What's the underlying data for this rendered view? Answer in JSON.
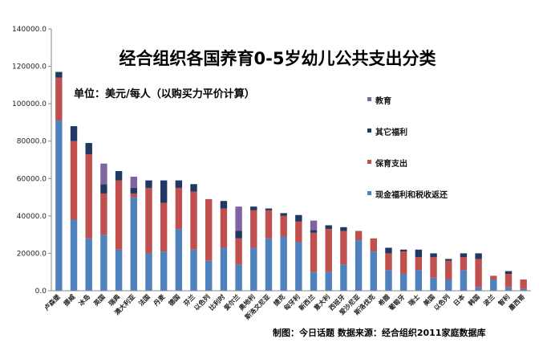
{
  "chart_data": {
    "type": "bar",
    "stacked": true,
    "title": "经合组织各国养育0-5岁幼儿公共支出分类",
    "subtitle": "单位：美元/每人（以购买力平价计算）",
    "credit": "制图：今日话题    数据来源：经合组织2011家庭数据库",
    "ylim": [
      0,
      140000
    ],
    "yticks": [
      "0.0",
      "20000.0",
      "40000.0",
      "60000.0",
      "80000.0",
      "100000.0",
      "120000.0",
      "140000.0"
    ],
    "ytick_values": [
      0,
      20000,
      40000,
      60000,
      80000,
      100000,
      120000,
      140000
    ],
    "grid": false,
    "legend_position": "right",
    "categories": [
      "卢森堡",
      "挪威",
      "冰岛",
      "英国",
      "瑞典",
      "澳大利亚",
      "法国",
      "丹麦",
      "德国",
      "芬兰",
      "以色列",
      "比利时",
      "爱尔兰",
      "奥地利",
      "斯洛文尼亚",
      "捷克",
      "匈牙利",
      "新西兰",
      "意大利",
      "西班牙",
      "爱沙尼亚",
      "斯洛伐克",
      "希腊",
      "葡萄牙",
      "瑞士",
      "美国",
      "以色列",
      "日本",
      "韩国",
      "波兰",
      "智利",
      "墨西哥"
    ],
    "series": [
      {
        "name": "现金福利和税收返还",
        "color": "#4f81bd",
        "values": [
          91000,
          38000,
          28000,
          30000,
          22000,
          50000,
          20000,
          21000,
          33000,
          22000,
          16000,
          23000,
          14000,
          23000,
          28000,
          29000,
          26000,
          10000,
          10000,
          14000,
          27000,
          21000,
          11000,
          9000,
          11000,
          7000,
          6000,
          11000,
          2000,
          6000,
          2000,
          1000
        ]
      },
      {
        "name": "保育支出",
        "color": "#c0504d",
        "values": [
          23000,
          42000,
          45000,
          22000,
          37000,
          2000,
          35000,
          26000,
          22000,
          31000,
          33000,
          21000,
          14000,
          20000,
          15000,
          11000,
          11000,
          21000,
          23000,
          18000,
          5000,
          7000,
          9000,
          12000,
          7000,
          11000,
          10000,
          7000,
          15000,
          2000,
          7000,
          5000
        ]
      },
      {
        "name": "其它福利",
        "color": "#1f3864",
        "values": [
          3000,
          8000,
          6000,
          5000,
          5000,
          3000,
          4000,
          12000,
          4000,
          4000,
          0,
          4000,
          4000,
          2000,
          1000,
          1500,
          3500,
          1500,
          2000,
          2000,
          0.5,
          0.5,
          3000,
          1000,
          4000,
          2000,
          1000,
          2000,
          3000,
          0.5,
          1500,
          0.5
        ]
      },
      {
        "name": "教育",
        "color": "#8064a2",
        "values": [
          0,
          0,
          0,
          11000,
          0,
          6000,
          0,
          0,
          0,
          0,
          0,
          0,
          13000,
          0,
          0,
          0,
          0,
          5000,
          0,
          0,
          0,
          0,
          0,
          0,
          0,
          0,
          0,
          0,
          0,
          0,
          0,
          0
        ]
      }
    ],
    "legend_order": [
      "教育",
      "其它福利",
      "保育支出",
      "现金福利和税收返还"
    ]
  }
}
